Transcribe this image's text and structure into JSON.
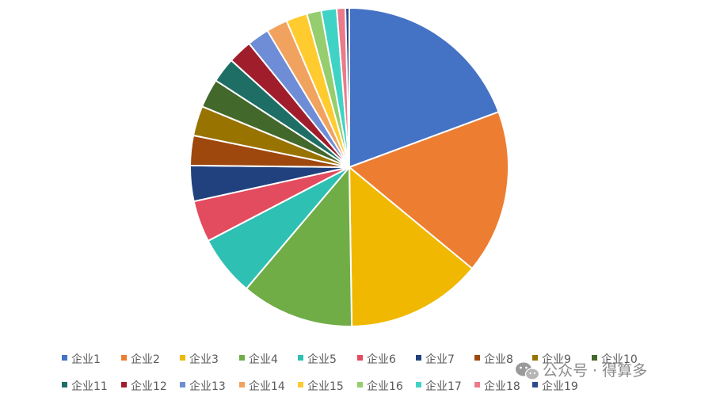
{
  "chart_data": {
    "type": "pie",
    "title": "",
    "legend_position": "bottom",
    "categories": [
      "企业1",
      "企业2",
      "企业3",
      "企业4",
      "企业5",
      "企业6",
      "企业7",
      "企业8",
      "企业9",
      "企业10",
      "企业11",
      "企业12",
      "企业13",
      "企业14",
      "企业15",
      "企业16",
      "企业17",
      "企业18",
      "企业19"
    ],
    "values": [
      19.8,
      17.0,
      14.1,
      11.7,
      6.3,
      4.3,
      3.7,
      3.1,
      3.1,
      3.0,
      2.6,
      2.5,
      2.3,
      2.2,
      2.2,
      1.5,
      1.6,
      0.9,
      0.4
    ],
    "colors": [
      "#4472C4",
      "#ED7D31",
      "#F0B800",
      "#70AD47",
      "#2EC0B2",
      "#E34B5F",
      "#21417E",
      "#9E480E",
      "#997300",
      "#43682B",
      "#1E6E66",
      "#A01E2C",
      "#6F8DD6",
      "#F1A25F",
      "#FFCB2E",
      "#96CD6E",
      "#3FD3C6",
      "#EB7A8A",
      "#2C4C8E"
    ]
  },
  "watermark": {
    "icon": "wechat-icon",
    "text": "公众号 · 得算多"
  }
}
